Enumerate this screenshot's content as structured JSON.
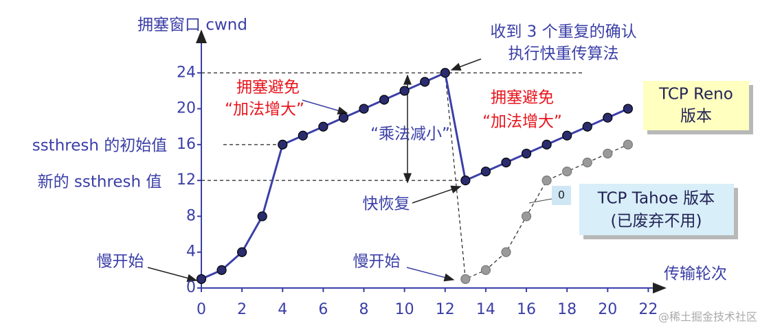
{
  "chart_data": {
    "type": "line",
    "y_label": "拥塞窗口 cwnd",
    "x_label": "传输轮次",
    "x": [
      0,
      1,
      2,
      3,
      4,
      5,
      6,
      7,
      8,
      9,
      10,
      11,
      12,
      13,
      14,
      15,
      16,
      17,
      18,
      19,
      20,
      21
    ],
    "series": [
      {
        "name": "TCP Reno",
        "note": "版本",
        "color": "#3b3fa8",
        "values": [
          1,
          2,
          4,
          8,
          16,
          17,
          18,
          19,
          20,
          21,
          22,
          23,
          24,
          12,
          13,
          14,
          15,
          16,
          17,
          18,
          19,
          20
        ]
      },
      {
        "name": "TCP Tahoe 版本",
        "note": "(已废弃不用)",
        "color": "#333333",
        "values": [
          null,
          null,
          null,
          null,
          null,
          null,
          null,
          null,
          null,
          null,
          null,
          null,
          24,
          1,
          2,
          4,
          8,
          12,
          13,
          14,
          15,
          16
        ]
      }
    ],
    "xlim": [
      0,
      23
    ],
    "ylim": [
      0,
      28
    ],
    "xticks": [
      0,
      2,
      4,
      6,
      8,
      10,
      12,
      14,
      16,
      18,
      20,
      22
    ],
    "yticks": [
      0,
      4,
      8,
      12,
      16,
      20,
      24
    ],
    "annotations": [
      {
        "text": "收到 3 个重复的确认",
        "color": "#3a3ea6"
      },
      {
        "text": "执行快重传算法",
        "color": "#3a3ea6"
      },
      {
        "text": "拥塞避免",
        "color": "#e8141c"
      },
      {
        "text": "“加法增大”",
        "color": "#e8141c"
      },
      {
        "text": "“乘法减小”",
        "color": "#3a3ea6"
      },
      {
        "text": "拥塞避免",
        "color": "#e8141c"
      },
      {
        "text": "“加法增大”",
        "color": "#e8141c"
      },
      {
        "text": "ssthresh 的初始值",
        "color": "#3a3ea6"
      },
      {
        "text": "新的 ssthresh 值",
        "color": "#3a3ea6"
      },
      {
        "text": "快恢复",
        "color": "#3a3ea6"
      },
      {
        "text": "慢开始",
        "color": "#3a3ea6"
      },
      {
        "text": "慢开始",
        "color": "#3a3ea6"
      },
      {
        "text": "0",
        "color": "#222222"
      },
      {
        "text": "@稀土掘金技术社区",
        "color": "#aaaaaa"
      }
    ]
  }
}
